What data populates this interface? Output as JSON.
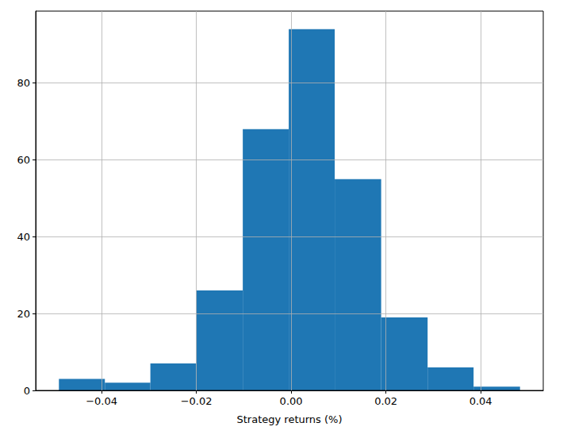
{
  "chart_data": {
    "type": "histogram",
    "x_label": "Strategy returns (%)",
    "bins": [
      -0.049,
      -0.0393,
      -0.0297,
      -0.02,
      -0.0102,
      -0.0005,
      0.0092,
      0.019,
      0.0288,
      0.0385,
      0.0483
    ],
    "counts": [
      3,
      2,
      7,
      26,
      68,
      94,
      55,
      19,
      6,
      1
    ],
    "color": "#1f77b4",
    "xlim": [
      -0.0539,
      0.0532
    ],
    "xticks": [
      {
        "value": -0.04,
        "label": "−0.04"
      },
      {
        "value": -0.02,
        "label": "−0.02"
      },
      {
        "value": 0,
        "label": "0.00"
      },
      {
        "value": 0.02,
        "label": "0.02"
      },
      {
        "value": 0.04,
        "label": "0.04"
      }
    ],
    "ylim": [
      0,
      98.7
    ],
    "yticks": [
      0,
      20,
      40,
      60,
      80
    ],
    "grid": true
  }
}
